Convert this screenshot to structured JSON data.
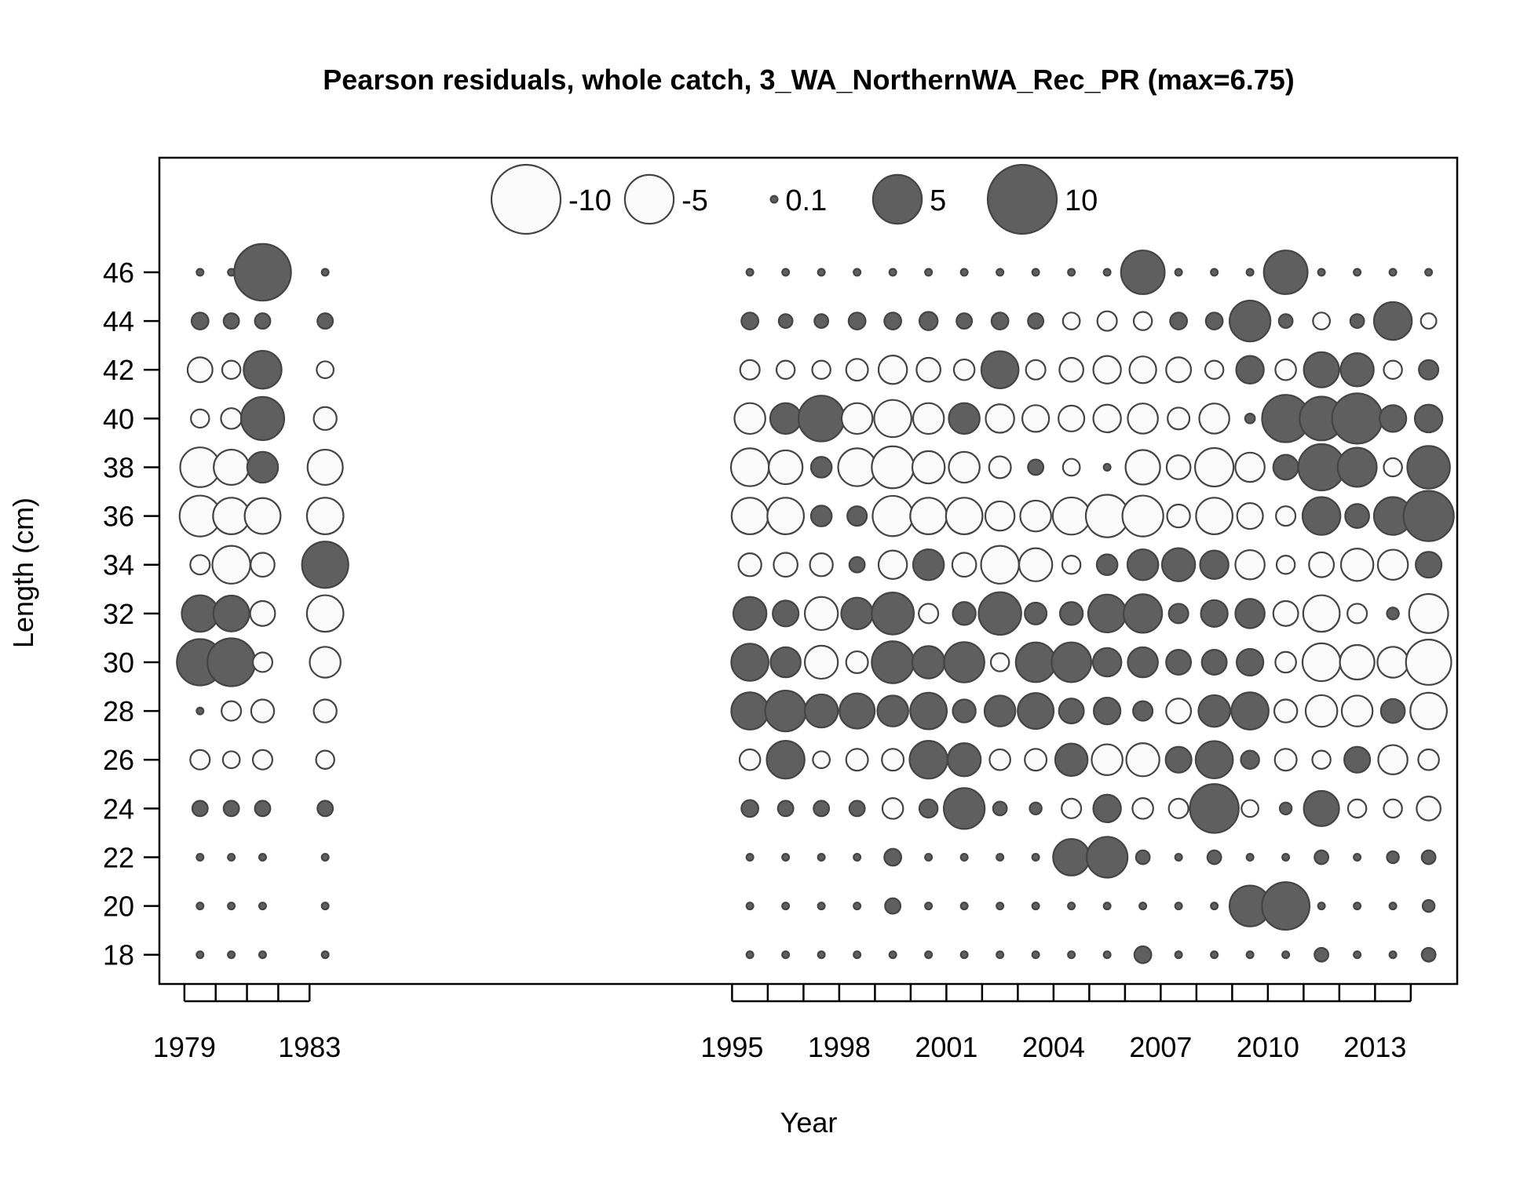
{
  "chart_data": {
    "type": "bubble",
    "title": "Pearson residuals, whole catch, 3_WA_NorthernWA_Rec_PR (max=6.75)",
    "xlabel": "Year",
    "ylabel": "Length (cm)",
    "x_tick_labels": [
      "1979",
      "1983",
      "1995",
      "1998",
      "2001",
      "2004",
      "2007",
      "2010",
      "2013"
    ],
    "y_tick_labels": [
      "18",
      "20",
      "22",
      "24",
      "26",
      "28",
      "30",
      "32",
      "34",
      "36",
      "38",
      "40",
      "42",
      "44",
      "46"
    ],
    "xlim": [
      1978.2,
      2015.3
    ],
    "ylim": [
      16.8,
      50.7
    ],
    "legend": {
      "placement": "top",
      "values": [
        -10,
        -5,
        0.1,
        5,
        10
      ],
      "labels": [
        "-10",
        "-5",
        "0.1",
        "5",
        "10"
      ]
    },
    "colors": {
      "positive": "#5f5f5f",
      "negative_fill": "#fafafa",
      "outline": "#444444"
    },
    "years": [
      1979.5,
      1980.5,
      1981.5,
      1983.5,
      1995.5,
      1996.5,
      1997.5,
      1998.5,
      1999.5,
      2000.5,
      2001.5,
      2002.5,
      2003.5,
      2004.5,
      2005.5,
      2006.5,
      2007.5,
      2008.5,
      2009.5,
      2010.5,
      2011.5,
      2012.5,
      2013.5,
      2014.5
    ],
    "lengths": [
      18,
      20,
      22,
      24,
      26,
      28,
      30,
      32,
      34,
      36,
      38,
      40,
      42,
      44,
      46
    ],
    "residuals": [
      [
        0.1,
        0.1,
        0.1,
        0.5,
        -0.8,
        0.1,
        4.5,
        2.8,
        -0.8,
        -3.5,
        -3.3,
        -0.7,
        -1.3,
        0.6,
        0.1
      ],
      [
        0.1,
        0.1,
        0.1,
        0.5,
        -0.6,
        -0.8,
        4.8,
        2.7,
        -3.0,
        -2.8,
        -2.6,
        -0.9,
        -0.7,
        0.5,
        0.1
      ],
      [
        0.1,
        0.1,
        0.1,
        0.5,
        -0.8,
        -1.1,
        -0.8,
        -1.3,
        -1.2,
        -2.7,
        2.0,
        3.9,
        3.0,
        0.5,
        6.75
      ],
      [
        0.1,
        0.1,
        0.1,
        0.5,
        -0.7,
        -1.1,
        -2.0,
        -2.8,
        4.5,
        -2.8,
        -2.6,
        -1.1,
        -0.6,
        0.5,
        0.1
      ],
      [
        0.1,
        0.1,
        0.1,
        0.6,
        -0.9,
        2.9,
        2.9,
        2.3,
        -1.1,
        -2.8,
        -3.0,
        -2.0,
        -0.8,
        0.6,
        0.1
      ],
      [
        0.1,
        0.1,
        0.1,
        0.5,
        3.0,
        3.5,
        1.9,
        1.4,
        -1.2,
        -2.8,
        -2.4,
        2.0,
        -0.7,
        0.4,
        0.1
      ],
      [
        0.1,
        0.1,
        0.1,
        0.5,
        -0.6,
        2.3,
        -2.3,
        -2.3,
        -1.1,
        0.9,
        0.9,
        4.4,
        -0.7,
        0.4,
        0.1
      ],
      [
        0.1,
        0.1,
        0.1,
        0.5,
        -1.0,
        2.6,
        -1.0,
        2.1,
        0.5,
        0.8,
        -3.0,
        -2.0,
        -1.0,
        0.6,
        0.1
      ],
      [
        0.1,
        0.5,
        0.6,
        -0.9,
        -1.0,
        2.0,
        3.7,
        3.7,
        -1.7,
        -3.4,
        -3.7,
        -2.9,
        -1.7,
        0.6,
        0.1
      ],
      [
        0.1,
        0.1,
        0.1,
        0.7,
        3.0,
        2.8,
        2.2,
        -0.8,
        2.0,
        -2.8,
        -2.2,
        -2.0,
        -1.2,
        0.7,
        0.1
      ],
      [
        0.1,
        0.1,
        0.1,
        3.5,
        2.3,
        1.1,
        3.4,
        1.1,
        -1.2,
        -2.8,
        -2.0,
        2.0,
        -0.9,
        0.5,
        0.1
      ],
      [
        0.1,
        0.1,
        0.1,
        0.4,
        -0.9,
        2.0,
        -0.7,
        3.8,
        -3.0,
        -1.8,
        -1.0,
        -1.7,
        2.9,
        0.6,
        0.1
      ],
      [
        0.1,
        0.1,
        0.1,
        0.3,
        -1.0,
        2.7,
        3.3,
        1.0,
        -2.3,
        -2.0,
        0.5,
        -1.5,
        -0.8,
        0.5,
        0.1
      ],
      [
        0.1,
        0.1,
        2.8,
        -0.8,
        2.2,
        1.3,
        3.3,
        1.1,
        -0.7,
        -2.9,
        -0.6,
        -1.4,
        -1.2,
        -0.6,
        0.1
      ],
      [
        0.1,
        0.1,
        3.5,
        1.6,
        -2.0,
        1.5,
        1.7,
        3.0,
        0.9,
        -3.8,
        0.1,
        -1.6,
        -1.6,
        -0.8,
        0.1
      ],
      [
        0.6,
        0.1,
        0.4,
        -0.9,
        -2.3,
        0.8,
        1.9,
        3.1,
        2.0,
        -3.5,
        -2.5,
        -1.9,
        -1.5,
        -0.7,
        4.0
      ],
      [
        0.1,
        0.1,
        0.1,
        -0.8,
        1.4,
        -1.3,
        1.3,
        0.8,
        2.3,
        -1.1,
        -1.2,
        -1.0,
        -1.3,
        0.6,
        0.1
      ],
      [
        0.1,
        0.1,
        0.4,
        5.0,
        2.9,
        2.1,
        1.3,
        1.5,
        1.7,
        -2.8,
        -3.1,
        -1.9,
        -0.7,
        0.6,
        0.1
      ],
      [
        0.1,
        3.5,
        0.1,
        -0.6,
        0.7,
        2.9,
        1.5,
        1.8,
        -1.8,
        -1.4,
        -1.8,
        0.2,
        1.6,
        3.5,
        0.1
      ],
      [
        0.1,
        4.75,
        0.1,
        0.3,
        -1.0,
        -1.1,
        -0.9,
        -1.3,
        -0.7,
        -0.8,
        1.3,
        4.7,
        -0.9,
        0.4,
        4.0
      ],
      [
        0.4,
        0.1,
        0.4,
        2.6,
        -0.7,
        -2.1,
        -3.0,
        -2.8,
        -1.3,
        3.0,
        4.5,
        4.0,
        2.6,
        -0.6,
        0.1
      ],
      [
        0.1,
        0.1,
        0.1,
        -0.7,
        1.4,
        -2.0,
        -2.5,
        -0.8,
        -2.2,
        1.2,
        3.2,
        5.3,
        2.3,
        0.4,
        0.1
      ],
      [
        0.1,
        0.1,
        0.3,
        -0.7,
        -1.8,
        1.2,
        -2.0,
        0.3,
        -1.9,
        3.0,
        -0.7,
        1.5,
        -0.7,
        3.0,
        0.1
      ],
      [
        0.4,
        0.3,
        0.4,
        -1.2,
        -0.9,
        -2.8,
        -4.3,
        -3.2,
        1.4,
        5.3,
        3.8,
        1.6,
        0.8,
        -0.5,
        0.1
      ]
    ]
  }
}
